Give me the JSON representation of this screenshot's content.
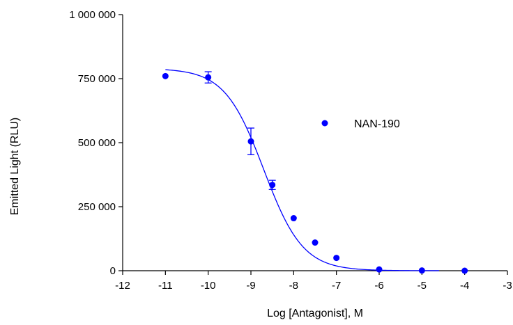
{
  "chart_data": {
    "type": "scatter",
    "title": "",
    "xlabel": "Log [Antagonist], M",
    "ylabel": "Emitted Light (RLU)",
    "xlim": [
      -12,
      -3
    ],
    "ylim": [
      0,
      1000000
    ],
    "x_ticks": [
      -12,
      -11,
      -10,
      -9,
      -8,
      -7,
      -6,
      -5,
      -4,
      -3
    ],
    "x_tick_labels": [
      "-12",
      "-11",
      "-10",
      "-9",
      "-8",
      "-7",
      "-6",
      "-5",
      "-4",
      "-3"
    ],
    "y_ticks": [
      0,
      250000,
      500000,
      750000,
      1000000
    ],
    "y_tick_labels": [
      "0",
      "250 000",
      "500 000",
      "750 000",
      "1 000 000"
    ],
    "grid": false,
    "legend_position": "right",
    "series": [
      {
        "name": "NAN-190",
        "color": "#0000ff",
        "points": [
          {
            "x": -11,
            "y": 760000,
            "err": 0
          },
          {
            "x": -10,
            "y": 755000,
            "err": 22000
          },
          {
            "x": -9,
            "y": 505000,
            "err": 52000
          },
          {
            "x": -8.5,
            "y": 335000,
            "err": 18000
          },
          {
            "x": -8,
            "y": 205000,
            "err": 0
          },
          {
            "x": -7.5,
            "y": 110000,
            "err": 0
          },
          {
            "x": -7,
            "y": 50000,
            "err": 0
          },
          {
            "x": -6,
            "y": 5000,
            "err": 0
          },
          {
            "x": -5,
            "y": 1000,
            "err": 0
          },
          {
            "x": -4,
            "y": 0,
            "err": 0
          }
        ],
        "fit": {
          "model": "four-parameter logistic",
          "top": 790000,
          "bottom": 0,
          "log_ic50": -8.7,
          "hill_slope": -0.95,
          "x_range": [
            -11,
            -4.6
          ]
        }
      }
    ]
  }
}
